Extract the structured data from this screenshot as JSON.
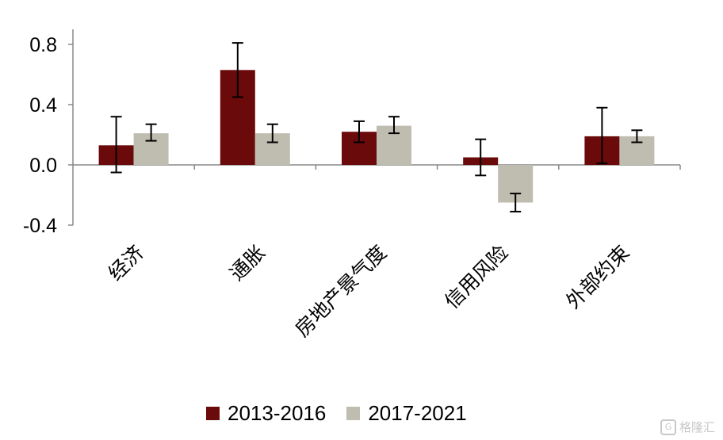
{
  "chart_data": {
    "type": "bar",
    "categories": [
      "经济",
      "通胀",
      "房地产景气度",
      "信用风险",
      "外部约束"
    ],
    "series": [
      {
        "name": "2013-2016",
        "color": "#6b0a0a",
        "values": [
          0.13,
          0.63,
          0.22,
          0.05,
          0.19
        ],
        "err_low": [
          -0.05,
          0.45,
          0.15,
          -0.07,
          0.01
        ],
        "err_high": [
          0.32,
          0.81,
          0.29,
          0.17,
          0.38
        ]
      },
      {
        "name": "2017-2021",
        "color": "#bfbdb0",
        "values": [
          0.21,
          0.21,
          0.26,
          -0.25,
          0.19
        ],
        "err_low": [
          0.16,
          0.15,
          0.21,
          -0.31,
          0.15
        ],
        "err_high": [
          0.27,
          0.27,
          0.32,
          -0.19,
          0.23
        ]
      }
    ],
    "yticks": [
      "0.8",
      "0.4",
      "0.0",
      "-0.4"
    ],
    "ylim": [
      -0.4,
      0.9
    ],
    "grid": false,
    "legend_position": "bottom"
  },
  "watermark": "格隆汇"
}
